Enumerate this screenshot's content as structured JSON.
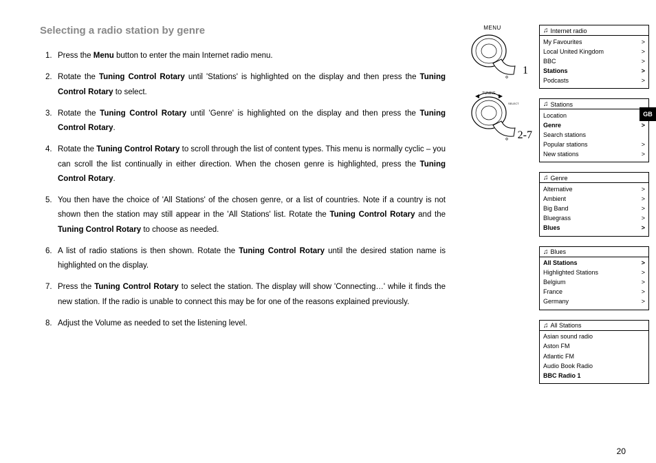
{
  "heading": "Selecting a radio station by genre",
  "steps": [
    {
      "n": "1.",
      "parts": [
        {
          "t": "Press the "
        },
        {
          "t": "Menu",
          "b": true
        },
        {
          "t": " button to enter the main Internet radio menu."
        }
      ]
    },
    {
      "n": "2.",
      "parts": [
        {
          "t": "Rotate the "
        },
        {
          "t": "Tuning Control Rotary",
          "b": true
        },
        {
          "t": " until 'Stations' is highlighted on the display and then press the "
        },
        {
          "t": "Tuning Control Rotary",
          "b": true
        },
        {
          "t": " to select."
        }
      ]
    },
    {
      "n": "3.",
      "parts": [
        {
          "t": "Rotate the "
        },
        {
          "t": "Tuning Control Rotary",
          "b": true
        },
        {
          "t": " until 'Genre' is highlighted on the display and then press the "
        },
        {
          "t": "Tuning Control Rotary",
          "b": true
        },
        {
          "t": "."
        }
      ]
    },
    {
      "n": "4.",
      "parts": [
        {
          "t": "Rotate the "
        },
        {
          "t": "Tuning Control Rotary",
          "b": true
        },
        {
          "t": " to scroll through the list of content types. This menu is normally cyclic – you can scroll the list continually in either direction. When the chosen genre is highlighted, press the "
        },
        {
          "t": "Tuning Control Rotary",
          "b": true
        },
        {
          "t": "."
        }
      ]
    },
    {
      "n": "5.",
      "parts": [
        {
          "t": "You then have the choice of 'All Stations' of the chosen genre, or a list of countries. Note if a country is not shown then the station may still appear in the 'All Stations' list. Rotate the "
        },
        {
          "t": "Tuning Control Rotary",
          "b": true
        },
        {
          "t": " and the "
        },
        {
          "t": "Tuning Control Rotary",
          "b": true
        },
        {
          "t": " to choose as needed."
        }
      ]
    },
    {
      "n": "6.",
      "parts": [
        {
          "t": "A list of radio stations is then shown. Rotate the "
        },
        {
          "t": "Tuning Control Rotary",
          "b": true
        },
        {
          "t": " until the desired station name is highlighted on the display."
        }
      ]
    },
    {
      "n": "7.",
      "parts": [
        {
          "t": "Press the "
        },
        {
          "t": "Tuning Control Rotary",
          "b": true
        },
        {
          "t": " to select the station. The display will show 'Connecting…' while it finds the new station. If the radio is unable to connect this may be for one of the reasons explained previously."
        }
      ]
    },
    {
      "n": "8.",
      "parts": [
        {
          "t": "Adjust the Volume as needed to set the listening level."
        }
      ]
    }
  ],
  "dials": [
    {
      "label": "MENU",
      "num": "1",
      "rot": false
    },
    {
      "label": "",
      "num": "2-7",
      "rot": true
    }
  ],
  "menus": [
    {
      "title": "Internet radio",
      "rows": [
        {
          "label": "My Favourites",
          "a": true
        },
        {
          "label": "Local United Kingdom",
          "a": true
        },
        {
          "label": "BBC",
          "a": true
        },
        {
          "label": "Stations",
          "a": true,
          "sel": true
        },
        {
          "label": "Podcasts",
          "a": true
        }
      ]
    },
    {
      "title": "Stations",
      "rows": [
        {
          "label": "Location",
          "a": true
        },
        {
          "label": "Genre",
          "a": true,
          "sel": true
        },
        {
          "label": "Search stations",
          "a": false
        },
        {
          "label": "Popular stations",
          "a": true
        },
        {
          "label": "New stations",
          "a": true
        }
      ]
    },
    {
      "title": "Genre",
      "rows": [
        {
          "label": "Alternative",
          "a": true
        },
        {
          "label": "Ambient",
          "a": true
        },
        {
          "label": "Big Band",
          "a": true
        },
        {
          "label": "Bluegrass",
          "a": true
        },
        {
          "label": "Blues",
          "a": true,
          "sel": true
        }
      ]
    },
    {
      "title": "Blues",
      "rows": [
        {
          "label": "All Stations",
          "a": true,
          "sel": true
        },
        {
          "label": "Highlighted Stations",
          "a": true
        },
        {
          "label": "Belgium",
          "a": true
        },
        {
          "label": "France",
          "a": true
        },
        {
          "label": "Germany",
          "a": true
        }
      ]
    },
    {
      "title": "All Stations",
      "rows": [
        {
          "label": "Asian sound radio",
          "a": false
        },
        {
          "label": "Aston FM",
          "a": false
        },
        {
          "label": "Atlantic FM",
          "a": false
        },
        {
          "label": "Audio Book Radio",
          "a": false
        },
        {
          "label": "BBC Radio 1",
          "a": false,
          "sel": true
        }
      ]
    }
  ],
  "sideTab": "GB",
  "pageNum": "20"
}
